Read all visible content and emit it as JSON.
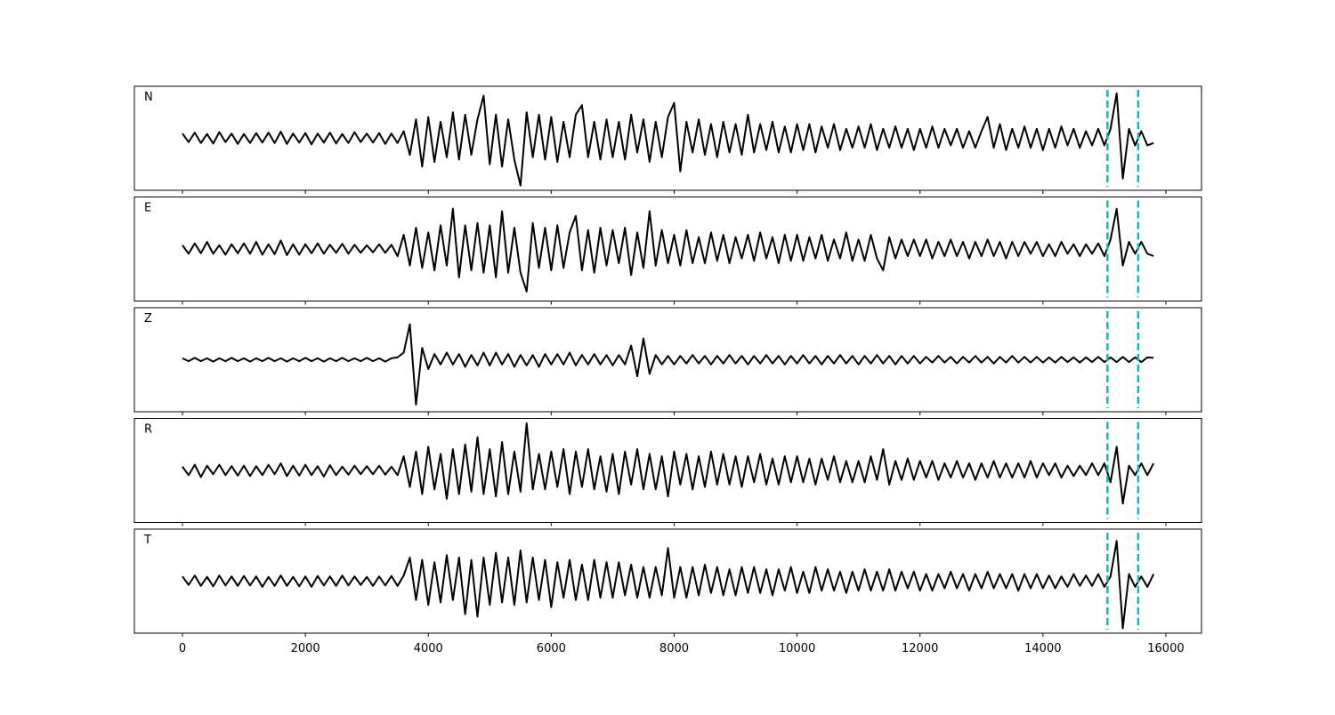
{
  "chart_data": {
    "type": "line",
    "layout": "stacked",
    "x": [
      0,
      100,
      200,
      300,
      400,
      500,
      600,
      700,
      800,
      900,
      1000,
      1100,
      1200,
      1300,
      1400,
      1500,
      1600,
      1700,
      1800,
      1900,
      2000,
      2100,
      2200,
      2300,
      2400,
      2500,
      2600,
      2700,
      2800,
      2900,
      3000,
      3100,
      3200,
      3300,
      3400,
      3500,
      3600,
      3700,
      3800,
      3900,
      4000,
      4100,
      4200,
      4300,
      4400,
      4500,
      4600,
      4700,
      4800,
      4900,
      5000,
      5100,
      5200,
      5300,
      5400,
      5500,
      5600,
      5700,
      5800,
      5900,
      6000,
      6100,
      6200,
      6300,
      6400,
      6500,
      6600,
      6700,
      6800,
      6900,
      7000,
      7100,
      7200,
      7300,
      7400,
      7500,
      7600,
      7700,
      7800,
      7900,
      8000,
      8100,
      8200,
      8300,
      8400,
      8500,
      8600,
      8700,
      8800,
      8900,
      9000,
      9100,
      9200,
      9300,
      9400,
      9500,
      9600,
      9700,
      9800,
      9900,
      10000,
      10100,
      10200,
      10300,
      10400,
      10500,
      10600,
      10700,
      10800,
      10900,
      11000,
      11100,
      11200,
      11300,
      11400,
      11500,
      11600,
      11700,
      11800,
      11900,
      12000,
      12100,
      12200,
      12300,
      12400,
      12500,
      12600,
      12700,
      12800,
      12900,
      13000,
      13100,
      13200,
      13300,
      13400,
      13500,
      13600,
      13700,
      13800,
      13900,
      14000,
      14100,
      14200,
      14300,
      14400,
      14500,
      14600,
      14700,
      14800,
      14900,
      15000,
      15100,
      15200,
      15300,
      15400,
      15500,
      15600,
      15700,
      15800
    ],
    "xlim": [
      -782,
      16580
    ],
    "xticks": [
      0,
      2000,
      4000,
      6000,
      8000,
      10000,
      12000,
      14000,
      16000
    ],
    "ylim": [
      -1.1,
      1.1
    ],
    "vlines": {
      "x": [
        15050,
        15550
      ],
      "color": "#00bfbf",
      "style": "dashed"
    },
    "series": [
      {
        "name": "N",
        "color": "#000000",
        "values": [
          0.1,
          -0.08,
          0.12,
          -0.1,
          0.09,
          -0.11,
          0.13,
          -0.08,
          0.1,
          -0.12,
          0.09,
          -0.1,
          0.11,
          -0.09,
          0.12,
          -0.1,
          0.14,
          -0.12,
          0.1,
          -0.09,
          0.11,
          -0.13,
          0.1,
          -0.09,
          0.12,
          -0.11,
          0.09,
          -0.1,
          0.13,
          -0.08,
          0.1,
          -0.09,
          0.11,
          -0.12,
          0.1,
          -0.1,
          0.15,
          -0.35,
          0.4,
          -0.6,
          0.45,
          -0.5,
          0.35,
          -0.4,
          0.55,
          -0.45,
          0.5,
          -0.35,
          0.4,
          0.9,
          -0.55,
          0.5,
          -0.6,
          0.4,
          -0.45,
          -1.0,
          0.55,
          -0.4,
          0.5,
          -0.45,
          0.45,
          -0.5,
          0.35,
          -0.4,
          0.5,
          0.7,
          -0.4,
          0.35,
          -0.45,
          0.4,
          -0.4,
          0.35,
          -0.45,
          0.5,
          -0.3,
          0.4,
          -0.5,
          0.35,
          -0.4,
          0.45,
          0.75,
          -0.7,
          0.35,
          -0.3,
          0.4,
          -0.35,
          0.3,
          -0.4,
          0.35,
          -0.3,
          0.3,
          -0.35,
          0.5,
          -0.3,
          0.3,
          -0.25,
          0.35,
          -0.3,
          0.25,
          -0.3,
          0.3,
          -0.25,
          0.3,
          -0.3,
          0.25,
          -0.2,
          0.3,
          -0.25,
          0.2,
          -0.2,
          0.25,
          -0.2,
          0.3,
          -0.25,
          0.2,
          -0.2,
          0.25,
          -0.2,
          0.2,
          -0.25,
          0.2,
          -0.2,
          0.25,
          -0.2,
          0.2,
          -0.15,
          0.2,
          -0.2,
          0.15,
          -0.2,
          0.15,
          0.45,
          -0.2,
          0.3,
          -0.25,
          0.2,
          -0.2,
          0.25,
          -0.2,
          0.2,
          -0.25,
          0.2,
          -0.2,
          0.25,
          -0.15,
          0.2,
          -0.2,
          0.15,
          -0.15,
          0.2,
          -0.15,
          0.2,
          0.95,
          -0.85,
          0.2,
          -0.15,
          0.15,
          -0.15,
          -0.1
        ]
      },
      {
        "name": "E",
        "color": "#000000",
        "values": [
          0.08,
          -0.1,
          0.12,
          -0.09,
          0.15,
          -0.1,
          0.08,
          -0.12,
          0.1,
          -0.09,
          0.12,
          -0.1,
          0.15,
          -0.12,
          0.1,
          -0.11,
          0.18,
          -0.13,
          0.1,
          -0.12,
          0.1,
          -0.09,
          0.12,
          -0.1,
          0.09,
          -0.08,
          0.11,
          -0.1,
          0.09,
          -0.08,
          0.08,
          -0.07,
          0.1,
          -0.08,
          0.09,
          -0.15,
          0.3,
          -0.35,
          0.45,
          -0.4,
          0.35,
          -0.45,
          0.5,
          -0.35,
          0.85,
          -0.6,
          0.5,
          -0.45,
          0.55,
          -0.5,
          0.5,
          -0.6,
          0.8,
          -0.5,
          0.45,
          -0.5,
          -0.9,
          0.55,
          -0.4,
          0.45,
          -0.45,
          0.5,
          -0.4,
          0.35,
          0.7,
          -0.45,
          0.4,
          -0.5,
          0.45,
          -0.35,
          0.4,
          -0.3,
          0.45,
          -0.55,
          0.35,
          -0.4,
          0.8,
          -0.35,
          0.4,
          -0.3,
          0.3,
          -0.35,
          0.4,
          -0.3,
          0.25,
          -0.3,
          0.35,
          -0.25,
          0.3,
          -0.3,
          0.25,
          -0.2,
          0.3,
          -0.25,
          0.35,
          -0.2,
          0.25,
          -0.3,
          0.3,
          -0.25,
          0.3,
          -0.25,
          0.25,
          -0.2,
          0.3,
          -0.25,
          0.2,
          -0.2,
          0.35,
          -0.25,
          0.2,
          -0.25,
          0.3,
          -0.2,
          -0.45,
          0.25,
          -0.2,
          0.2,
          -0.15,
          0.2,
          -0.15,
          0.2,
          -0.2,
          0.15,
          -0.15,
          0.2,
          -0.15,
          0.15,
          -0.2,
          0.15,
          -0.15,
          0.2,
          -0.15,
          0.15,
          -0.2,
          0.15,
          -0.15,
          0.15,
          -0.1,
          0.15,
          -0.15,
          0.1,
          -0.15,
          0.15,
          -0.1,
          0.1,
          -0.15,
          0.1,
          -0.1,
          0.12,
          -0.15,
          0.2,
          0.85,
          -0.35,
          0.15,
          -0.1,
          0.15,
          -0.1,
          -0.15
        ]
      },
      {
        "name": "Z",
        "color": "#000000",
        "values": [
          0.03,
          -0.03,
          0.04,
          -0.03,
          0.03,
          -0.04,
          0.03,
          -0.03,
          0.04,
          -0.03,
          0.03,
          -0.04,
          0.03,
          -0.03,
          0.04,
          -0.03,
          0.03,
          -0.04,
          0.03,
          -0.03,
          0.04,
          -0.03,
          0.03,
          -0.04,
          0.03,
          -0.03,
          0.04,
          -0.03,
          0.03,
          -0.03,
          0.04,
          -0.03,
          0.03,
          -0.04,
          0.03,
          0.05,
          0.15,
          0.75,
          -0.95,
          0.25,
          -0.2,
          0.12,
          -0.1,
          0.15,
          -0.1,
          0.12,
          -0.15,
          0.1,
          -0.12,
          0.15,
          -0.12,
          0.15,
          -0.1,
          0.12,
          -0.15,
          0.1,
          -0.12,
          0.1,
          -0.15,
          0.12,
          -0.1,
          0.12,
          -0.1,
          0.15,
          -0.12,
          0.1,
          -0.1,
          0.12,
          -0.1,
          0.1,
          -0.12,
          0.1,
          -0.1,
          0.3,
          -0.35,
          0.45,
          -0.3,
          0.1,
          -0.1,
          0.08,
          -0.1,
          0.08,
          -0.08,
          0.1,
          -0.08,
          0.08,
          -0.1,
          0.08,
          -0.08,
          0.1,
          -0.08,
          0.08,
          -0.1,
          0.08,
          -0.08,
          0.1,
          -0.08,
          0.08,
          -0.1,
          0.08,
          -0.08,
          0.1,
          -0.08,
          0.08,
          -0.1,
          0.08,
          -0.08,
          0.1,
          -0.08,
          0.08,
          -0.1,
          0.08,
          -0.08,
          0.1,
          -0.08,
          0.08,
          -0.1,
          0.08,
          -0.08,
          0.08,
          -0.08,
          0.06,
          -0.06,
          0.08,
          -0.06,
          0.06,
          -0.08,
          0.06,
          -0.06,
          0.08,
          -0.06,
          0.06,
          -0.08,
          0.06,
          -0.06,
          0.08,
          -0.06,
          0.06,
          -0.06,
          0.06,
          -0.06,
          0.05,
          -0.06,
          0.06,
          -0.05,
          0.05,
          -0.06,
          0.05,
          -0.05,
          0.06,
          -0.05,
          0.05,
          -0.05,
          0.06,
          -0.05,
          0.05,
          -0.05,
          0.05,
          0.04
        ]
      },
      {
        "name": "R",
        "color": "#000000",
        "values": [
          0.08,
          -0.1,
          0.12,
          -0.14,
          0.1,
          -0.08,
          0.12,
          -0.1,
          0.09,
          -0.11,
          0.1,
          -0.12,
          0.09,
          -0.1,
          0.12,
          -0.08,
          0.15,
          -0.12,
          0.1,
          -0.11,
          0.12,
          -0.1,
          0.09,
          -0.13,
          0.11,
          -0.1,
          0.08,
          -0.09,
          0.1,
          -0.08,
          0.09,
          -0.08,
          0.1,
          -0.09,
          0.08,
          -0.1,
          0.3,
          -0.35,
          0.4,
          -0.5,
          0.5,
          -0.4,
          0.35,
          -0.6,
          0.45,
          -0.5,
          0.55,
          -0.45,
          0.7,
          -0.5,
          0.45,
          -0.55,
          0.6,
          -0.5,
          0.4,
          -0.45,
          1.0,
          -0.4,
          0.35,
          -0.4,
          0.4,
          -0.35,
          0.45,
          -0.5,
          0.4,
          -0.35,
          0.45,
          -0.4,
          0.3,
          -0.45,
          0.35,
          -0.5,
          0.4,
          -0.3,
          0.45,
          -0.4,
          0.35,
          -0.4,
          0.3,
          -0.55,
          0.4,
          -0.3,
          0.35,
          -0.4,
          0.3,
          -0.35,
          0.4,
          -0.3,
          0.35,
          -0.3,
          0.3,
          -0.35,
          0.3,
          -0.25,
          0.35,
          -0.3,
          0.25,
          -0.3,
          0.3,
          -0.25,
          0.3,
          -0.25,
          0.25,
          -0.3,
          0.25,
          -0.2,
          0.3,
          -0.25,
          0.2,
          -0.25,
          0.2,
          -0.25,
          0.3,
          -0.2,
          0.45,
          -0.3,
          0.2,
          -0.2,
          0.25,
          -0.2,
          0.2,
          -0.15,
          0.2,
          -0.2,
          0.15,
          -0.15,
          0.2,
          -0.15,
          0.15,
          -0.2,
          0.15,
          -0.15,
          0.2,
          -0.15,
          0.15,
          -0.15,
          0.15,
          -0.15,
          0.2,
          -0.15,
          0.15,
          -0.1,
          0.15,
          -0.15,
          0.1,
          -0.12,
          0.1,
          -0.1,
          0.15,
          -0.1,
          0.15,
          -0.25,
          0.5,
          -0.7,
          0.1,
          -0.1,
          0.15,
          -0.1,
          0.15
        ]
      },
      {
        "name": "T",
        "color": "#000000",
        "values": [
          0.1,
          -0.08,
          0.12,
          -0.1,
          0.09,
          -0.11,
          0.12,
          -0.09,
          0.1,
          -0.1,
          0.11,
          -0.09,
          0.1,
          -0.12,
          0.09,
          -0.1,
          0.12,
          -0.1,
          0.09,
          -0.11,
          0.1,
          -0.12,
          0.11,
          -0.09,
          0.1,
          -0.1,
          0.12,
          -0.09,
          0.1,
          -0.08,
          0.09,
          -0.1,
          0.1,
          -0.09,
          0.11,
          -0.1,
          0.12,
          0.5,
          -0.4,
          0.45,
          -0.5,
          0.4,
          -0.45,
          0.55,
          -0.4,
          0.5,
          -0.7,
          0.45,
          -0.75,
          0.5,
          -0.5,
          0.6,
          -0.45,
          0.5,
          -0.5,
          0.65,
          -0.45,
          0.5,
          -0.4,
          0.45,
          -0.55,
          0.4,
          -0.35,
          0.45,
          -0.4,
          0.35,
          -0.4,
          0.45,
          -0.35,
          0.4,
          -0.35,
          0.4,
          -0.3,
          0.35,
          -0.35,
          0.3,
          -0.35,
          0.3,
          -0.3,
          0.7,
          -0.35,
          0.3,
          -0.35,
          0.3,
          -0.3,
          0.35,
          -0.25,
          0.3,
          -0.3,
          0.25,
          -0.3,
          0.3,
          -0.25,
          0.3,
          -0.25,
          0.25,
          -0.3,
          0.25,
          -0.2,
          0.3,
          -0.25,
          0.2,
          -0.25,
          0.3,
          -0.2,
          0.25,
          -0.2,
          0.2,
          -0.25,
          0.2,
          -0.2,
          0.25,
          -0.2,
          0.2,
          -0.2,
          0.25,
          -0.2,
          0.2,
          -0.15,
          0.2,
          -0.2,
          0.15,
          -0.2,
          0.15,
          -0.15,
          0.2,
          -0.15,
          0.15,
          -0.2,
          0.15,
          -0.15,
          0.2,
          -0.15,
          0.15,
          -0.15,
          0.15,
          -0.2,
          0.15,
          -0.15,
          0.15,
          -0.15,
          0.12,
          -0.15,
          0.1,
          -0.12,
          0.15,
          -0.1,
          0.12,
          -0.1,
          0.15,
          -0.12,
          0.1,
          0.85,
          -1.0,
          0.15,
          -0.12,
          0.1,
          -0.12,
          0.15
        ]
      }
    ]
  }
}
